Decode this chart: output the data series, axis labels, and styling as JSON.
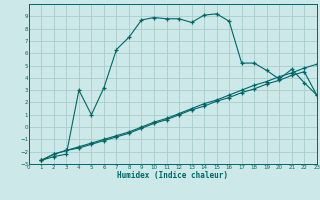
{
  "title": "",
  "xlabel": "Humidex (Indice chaleur)",
  "xlim": [
    0,
    23
  ],
  "ylim": [
    -3,
    10
  ],
  "xticks": [
    0,
    1,
    2,
    3,
    4,
    5,
    6,
    7,
    8,
    9,
    10,
    11,
    12,
    13,
    14,
    15,
    16,
    17,
    18,
    19,
    20,
    21,
    22,
    23
  ],
  "yticks": [
    -3,
    -2,
    -1,
    0,
    1,
    2,
    3,
    4,
    5,
    6,
    7,
    8,
    9
  ],
  "bg_color": "#cce8e8",
  "grid_color": "#aacccc",
  "line_color": "#006666",
  "line1_x": [
    1,
    2,
    3,
    4,
    5,
    6,
    7,
    8,
    9,
    10,
    11,
    12,
    13,
    14,
    15,
    16,
    17,
    18,
    19,
    20,
    21,
    22,
    23
  ],
  "line1_y": [
    -2.7,
    -2.4,
    -2.2,
    3.0,
    1.0,
    3.2,
    6.3,
    7.3,
    8.7,
    8.9,
    8.8,
    8.8,
    8.5,
    9.1,
    9.2,
    8.6,
    5.2,
    5.2,
    4.6,
    3.9,
    4.7,
    3.6,
    2.6
  ],
  "line2_x": [
    1,
    2,
    3,
    4,
    5,
    6,
    7,
    8,
    9,
    10,
    11,
    12,
    13,
    14,
    15,
    16,
    17,
    18,
    19,
    20,
    21,
    22,
    23
  ],
  "line2_y": [
    -2.7,
    -2.2,
    -1.9,
    -1.6,
    -1.3,
    -1.0,
    -0.7,
    -0.4,
    0.0,
    0.4,
    0.7,
    1.1,
    1.5,
    1.9,
    2.2,
    2.6,
    3.0,
    3.4,
    3.7,
    4.1,
    4.4,
    4.8,
    5.1
  ],
  "line3_x": [
    1,
    2,
    3,
    4,
    5,
    6,
    7,
    8,
    9,
    10,
    11,
    12,
    13,
    14,
    15,
    16,
    17,
    18,
    19,
    20,
    21,
    22,
    23
  ],
  "line3_y": [
    -2.7,
    -2.2,
    -1.9,
    -1.7,
    -1.4,
    -1.1,
    -0.8,
    -0.5,
    -0.1,
    0.3,
    0.6,
    1.0,
    1.4,
    1.7,
    2.1,
    2.4,
    2.8,
    3.1,
    3.5,
    3.8,
    4.2,
    4.5,
    2.6
  ]
}
